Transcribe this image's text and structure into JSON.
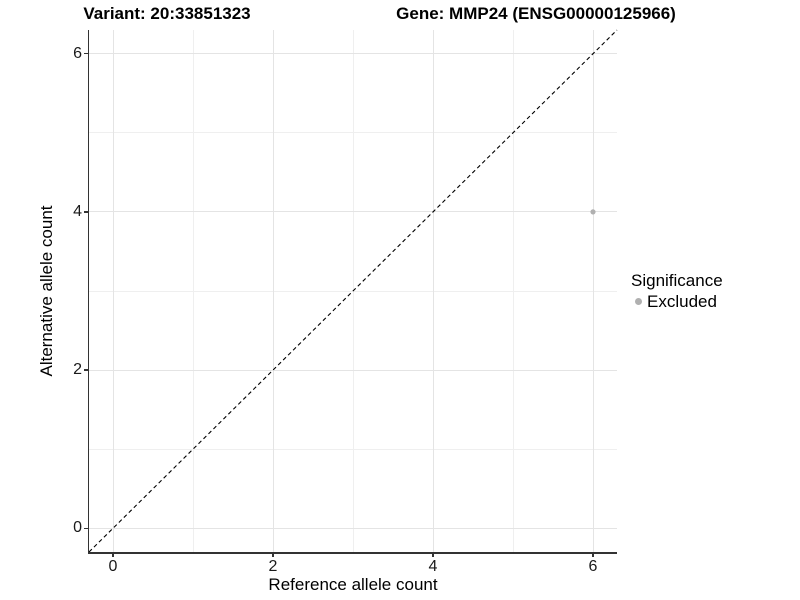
{
  "header": {
    "title_left": "Variant: 20:33851323",
    "title_right": "Gene: MMP24 (ENSG00000125966)"
  },
  "axes": {
    "x_label": "Reference allele count",
    "y_label": "Alternative allele count"
  },
  "legend": {
    "title": "Significance",
    "items": [
      {
        "label": "Excluded",
        "marker": "dot",
        "color": "#b0b0b0"
      }
    ]
  },
  "colors": {
    "background": "#ffffff",
    "text": "#000000",
    "axis_line": "#333333",
    "tick_mark": "#333333",
    "grid_major": "#e4e4e4",
    "grid_minor": "#efefef",
    "point": "#b0b0b0",
    "reference_line": "#000000"
  },
  "chart_data": {
    "type": "scatter",
    "title": "Variant: 20:33851323 — Gene: MMP24 (ENSG00000125966)",
    "xlabel": "Reference allele count",
    "ylabel": "Alternative allele count",
    "xlim": [
      -0.3,
      6.3
    ],
    "ylim": [
      -0.3,
      6.3
    ],
    "xticks": [
      0,
      2,
      4,
      6
    ],
    "yticks": [
      0,
      2,
      4,
      6
    ],
    "minor_xticks": [
      1,
      3,
      5
    ],
    "minor_yticks": [
      1,
      3,
      5
    ],
    "grid": "major and minor gridlines, light gray on white",
    "legend_position": "right",
    "series": [
      {
        "name": "Excluded",
        "color": "#b0b0b0",
        "marker": "circle",
        "points": [
          {
            "x": 6,
            "y": 4
          }
        ]
      }
    ],
    "reference_line": {
      "kind": "identity y=x",
      "from": [
        -0.3,
        -0.3
      ],
      "to": [
        6.3,
        6.3
      ],
      "style": "dashed",
      "color": "#000000"
    }
  }
}
